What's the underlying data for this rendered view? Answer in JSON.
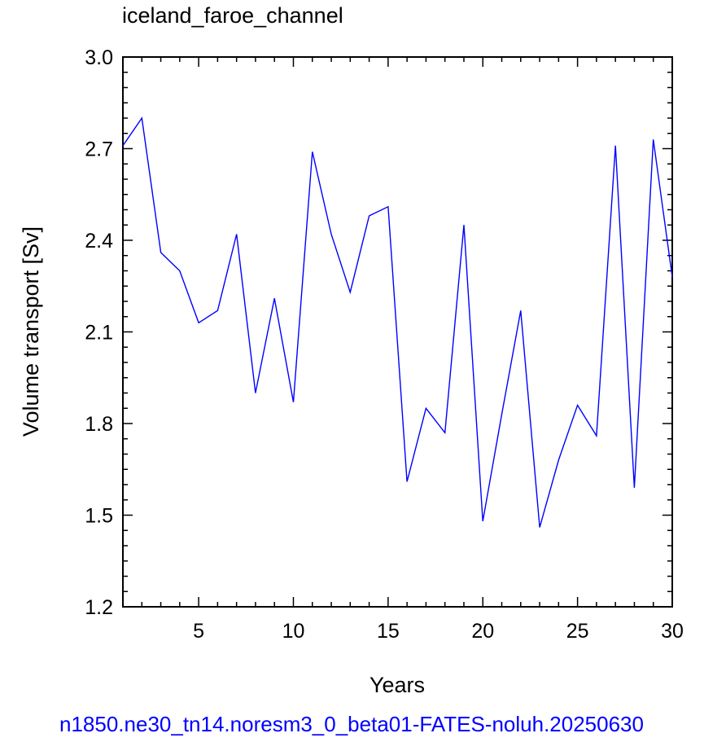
{
  "chart_data": {
    "type": "line",
    "title": "iceland_faroe_channel",
    "xlabel": "Years",
    "ylabel": "Volume transport [Sv]",
    "xlim": [
      1,
      30
    ],
    "ylim": [
      1.2,
      3.0
    ],
    "x_ticks": [
      5,
      10,
      15,
      20,
      25,
      30
    ],
    "y_ticks": [
      1.2,
      1.5,
      1.8,
      2.1,
      2.4,
      2.7,
      3.0
    ],
    "y_tick_labels": [
      "1.2",
      "1.5",
      "1.8",
      "2.1",
      "2.4",
      "2.7",
      "3.0"
    ],
    "grid": false,
    "series": [
      {
        "color": "#0000ff",
        "x": [
          1,
          2,
          3,
          4,
          5,
          6,
          7,
          8,
          9,
          10,
          11,
          12,
          13,
          14,
          15,
          16,
          17,
          18,
          19,
          20,
          21,
          22,
          23,
          24,
          25,
          26,
          27,
          28,
          29,
          30
        ],
        "y": [
          2.71,
          2.8,
          2.36,
          2.3,
          2.13,
          2.17,
          2.42,
          1.9,
          2.21,
          1.87,
          2.69,
          2.42,
          2.23,
          2.48,
          2.51,
          1.61,
          1.85,
          1.77,
          2.45,
          1.48,
          1.83,
          2.17,
          1.46,
          1.68,
          1.86,
          1.76,
          2.71,
          1.59,
          2.73,
          2.28
        ]
      }
    ]
  },
  "caption": {
    "text": "n1850.ne30_tn14.noresm3_0_beta01-FATES-noluh.20250630",
    "color": "#0000ff"
  }
}
